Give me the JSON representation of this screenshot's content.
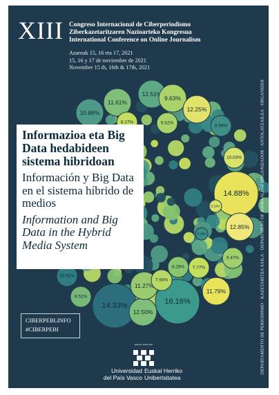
{
  "header": {
    "roman": "XIII",
    "lines": [
      "Congreso Internacional de Ciberperiodismo",
      "Ziberkazetaritzaren Nazioarteko Kongresua",
      "International Conference on Online Journalism"
    ]
  },
  "dates": [
    "Azaroak 15, 16 eta 17, 2021",
    "15, 16 y 17 de noviembre de 2021",
    "November 15 th, 16th & 17th, 2021"
  ],
  "title": {
    "basque": "Informazioa eta Big Data hedabideen sistema hibridoan",
    "spanish": "Información y Big Data en el sistema híbrido de medios",
    "english": "Information and Big Data in the Hybrid Media System"
  },
  "hashtags": [
    "CIBERPEBLINFO",
    "#CIBERPEBI"
  ],
  "vertical_text": "DEPARTAMENTO DE PERIODISMO · KAZETARITZA SAILA · DEPARTMENT OF JOURNALISM     ORGANIZADOR · ANTOLATZAILEA · ORGANIZER",
  "university": {
    "small_top": "eman ta zabal zazu",
    "left": [
      "Universidad",
      "del País Vasco"
    ],
    "right": [
      "Euskal Herriko",
      "Unibertsitatea"
    ]
  },
  "bubbles": [
    {
      "label": "11.61%",
      "color": "#7fbf7a",
      "size": "m"
    },
    {
      "label": "12.51%",
      "color": "#5ea985",
      "size": "m"
    },
    {
      "label": "9.63%",
      "color": "#aad46a",
      "size": "m"
    },
    {
      "label": "10.86%",
      "color": "#4f9a86",
      "size": "m"
    },
    {
      "label": "8.27%",
      "color": "#c5de5e",
      "size": "s"
    },
    {
      "label": "9.62%",
      "color": "#aad46a",
      "size": "s"
    },
    {
      "label": "12.25%",
      "color": "#e1e36a",
      "size": "m"
    },
    {
      "label": "9.99%",
      "color": "#3f8f88",
      "size": "s"
    },
    {
      "label": "10.03%",
      "color": "#d9e26a",
      "size": "s"
    },
    {
      "label": "14.88%",
      "color": "#e9e35c",
      "size": "l"
    },
    {
      "label": "12.85%",
      "color": "#f0e77a",
      "size": "m"
    },
    {
      "label": "9.47%",
      "color": "#a2cf6e",
      "size": "s"
    },
    {
      "label": "11.79%",
      "color": "#e9e35c",
      "size": "m"
    },
    {
      "label": "16.16%",
      "color": "#3c9a8c",
      "size": "l"
    },
    {
      "label": "14.33%",
      "color": "#2c6e7c",
      "size": "l"
    },
    {
      "label": "12.50%",
      "color": "#7fbf7a",
      "size": "m"
    },
    {
      "label": "11.27%",
      "color": "#9acb6e",
      "size": "m"
    },
    {
      "label": "9.52%",
      "color": "#78b878",
      "size": "s"
    },
    {
      "label": "10.61%",
      "color": "#2f7d82",
      "size": "s"
    },
    {
      "label": "8.28%",
      "color": "#8ac66f",
      "size": "s"
    },
    {
      "label": "7.94%",
      "color": "#b8da64",
      "size": "s"
    },
    {
      "label": "7.77%",
      "color": "#c4de5e",
      "size": "s"
    },
    {
      "label": "6.38%",
      "color": "#3b8f88",
      "size": "xs"
    },
    {
      "label": "5.23%",
      "color": "#d9e26a",
      "size": "xs"
    }
  ]
}
